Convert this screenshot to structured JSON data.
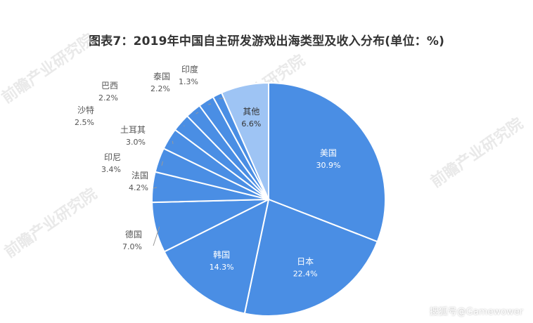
{
  "title": "图表7：2019年中国自主研发游戏出海类型及收入分布(单位：%)",
  "watermark": "前瞻产业研究院",
  "footer": "搜狐号@Gamewower",
  "colors": {
    "slice_fill": "#4a8ee4",
    "last_slice_fill": "#9ec4f4",
    "slice_stroke": "#ffffff",
    "label_text": "#555555",
    "leader_line": "#9a9a9a"
  },
  "chart_data": {
    "type": "pie",
    "start": "12 o'clock",
    "direction": "clockwise",
    "slices": [
      {
        "label": "美国",
        "value": 30.9,
        "value_text": "30.9%"
      },
      {
        "label": "日本",
        "value": 22.4,
        "value_text": "22.4%"
      },
      {
        "label": "韩国",
        "value": 14.3,
        "value_text": "14.3%"
      },
      {
        "label": "德国",
        "value": 7.0,
        "value_text": "7.0%"
      },
      {
        "label": "法国",
        "value": 4.2,
        "value_text": "4.2%"
      },
      {
        "label": "印尼",
        "value": 3.4,
        "value_text": "3.4%"
      },
      {
        "label": "土耳其",
        "value": 3.0,
        "value_text": "3.0%"
      },
      {
        "label": "沙特",
        "value": 2.5,
        "value_text": "2.5%"
      },
      {
        "label": "巴西",
        "value": 2.2,
        "value_text": "2.2%"
      },
      {
        "label": "泰国",
        "value": 2.2,
        "value_text": "2.2%"
      },
      {
        "label": "印度",
        "value": 1.3,
        "value_text": "1.3%"
      },
      {
        "label": "其他",
        "value": 6.6,
        "value_text": "6.6%"
      }
    ]
  }
}
